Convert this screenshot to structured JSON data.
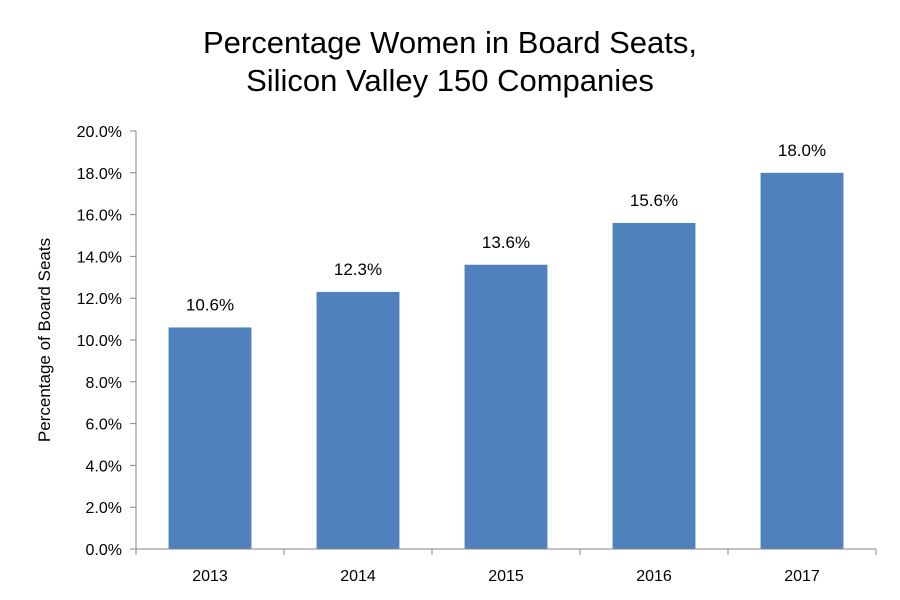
{
  "chart_data": {
    "type": "bar",
    "title": [
      "Percentage Women in Board Seats,",
      "Silicon Valley 150 Companies"
    ],
    "xlabel": "",
    "ylabel": "Percentage of Board Seats",
    "categories": [
      "2013",
      "2014",
      "2015",
      "2016",
      "2017"
    ],
    "values": [
      10.6,
      12.3,
      13.6,
      15.6,
      18.0
    ],
    "data_labels": [
      "10.6%",
      "12.3%",
      "13.6%",
      "15.6%",
      "18.0%"
    ],
    "ylim": [
      0,
      20
    ],
    "y_ticks": [
      "0.0%",
      "2.0%",
      "4.0%",
      "6.0%",
      "8.0%",
      "10.0%",
      "12.0%",
      "14.0%",
      "16.0%",
      "18.0%",
      "20.0%"
    ],
    "grid": false,
    "legend": "none",
    "bar_color": "#4F81BD",
    "axis_color": "#868686"
  }
}
